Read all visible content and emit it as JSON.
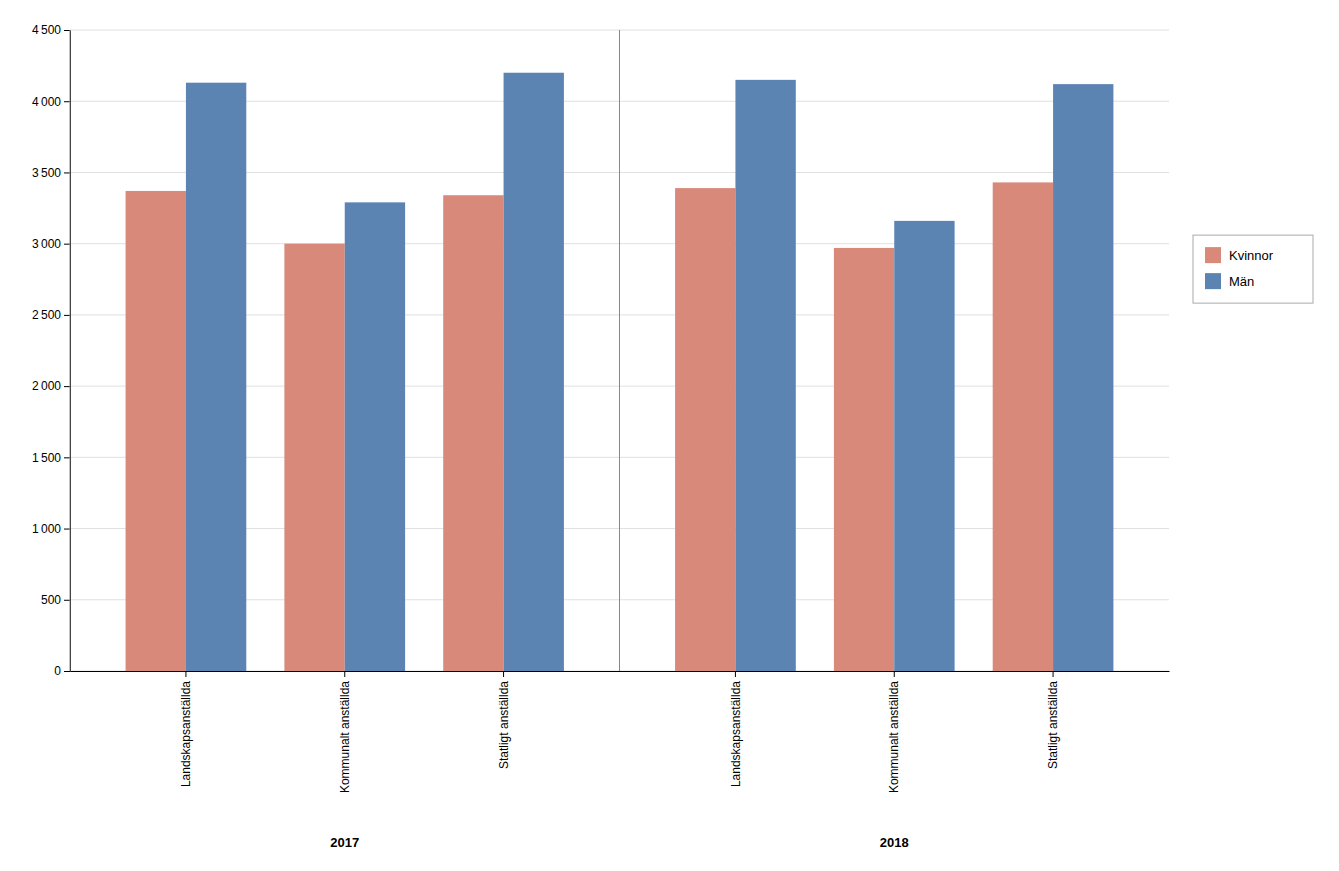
{
  "chart_data": {
    "type": "bar",
    "categories": [
      "Landskapsanställda",
      "Kommunalt anställda",
      "Statligt anställda",
      "Landskapsanställda",
      "Kommunalt anställda",
      "Statligt anställda"
    ],
    "group_labels": [
      "2017",
      "2018"
    ],
    "series": [
      {
        "name": "Kvinnor",
        "color": "#d8897a",
        "values": [
          3370,
          3000,
          3340,
          3390,
          2970,
          3430
        ]
      },
      {
        "name": "Män",
        "color": "#5b84b3",
        "values": [
          4130,
          3290,
          4200,
          4150,
          3160,
          4120
        ]
      }
    ],
    "ylim": [
      0,
      4500
    ],
    "yticks": [
      0,
      500,
      {
        "value": 1000,
        "label": "1 000"
      },
      {
        "value": 1500,
        "label": "1 500"
      },
      {
        "value": 2000,
        "label": "2 000"
      },
      {
        "value": 2500,
        "label": "2 500"
      },
      {
        "value": 3000,
        "label": "3 000"
      },
      {
        "value": 3500,
        "label": "3 500"
      },
      {
        "value": 4000,
        "label": "4 000"
      },
      {
        "value": 4500,
        "label": "4 500"
      }
    ],
    "grid": true,
    "legend": "right"
  }
}
